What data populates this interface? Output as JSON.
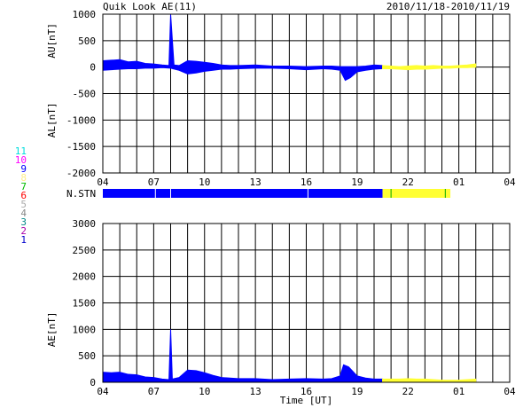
{
  "header": {
    "title": "Quik Look AE(11)",
    "date_range": "2010/11/18-2010/11/19"
  },
  "colors": {
    "grid": "#000000",
    "data_main": "#0000ff",
    "data_provisional": "#ffff33",
    "station_bar_main": "#0000ff",
    "station_bar_provisional": "#ffff33"
  },
  "station_legend": [
    {
      "num": "11",
      "color": "#00dddd"
    },
    {
      "num": "10",
      "color": "#ff00ff"
    },
    {
      "num": "9",
      "color": "#0000ff"
    },
    {
      "num": "8",
      "color": "#ffee88"
    },
    {
      "num": "7",
      "color": "#00bb00"
    },
    {
      "num": "6",
      "color": "#ff0000"
    },
    {
      "num": "5",
      "color": "#aaaaaa"
    },
    {
      "num": "4",
      "color": "#888888"
    },
    {
      "num": "3",
      "color": "#008888"
    },
    {
      "num": "2",
      "color": "#aa00aa"
    },
    {
      "num": "1",
      "color": "#0000cc"
    }
  ],
  "station_bar": {
    "label": "N.STN",
    "segments": [
      {
        "start": 4.0,
        "end": 20.5,
        "color": "#0000ff"
      },
      {
        "start": 20.5,
        "end": 24.5,
        "color": "#ffff33"
      }
    ],
    "dividers": [
      7.1,
      8.0,
      16.1,
      21.0,
      24.2
    ]
  },
  "chart_data": [
    {
      "type": "area",
      "panel": "AU/AL",
      "ylabel_top": "AU[nT]",
      "ylabel_bottom": "AL[nT]",
      "ylim": [
        -2000,
        1000
      ],
      "yticks": [
        1000,
        500,
        0,
        -500,
        -1000,
        -1500,
        -2000
      ],
      "xlim": [
        4,
        28
      ],
      "xticks": [
        "04",
        "07",
        "10",
        "13",
        "16",
        "19",
        "22",
        "01",
        "04"
      ],
      "grid": true,
      "series": [
        {
          "role": "AU",
          "x": [
            4,
            4.5,
            5,
            5.5,
            6,
            6.5,
            7,
            7.5,
            7.9,
            8,
            8.2,
            8.5,
            9,
            9.5,
            10,
            10.5,
            11,
            11.5,
            12,
            13,
            14,
            15,
            16,
            17,
            17.5,
            18,
            18.5,
            19,
            19.5,
            20,
            20.5,
            21,
            21.5,
            22,
            22.5,
            23,
            23.5,
            24,
            24.5,
            25,
            25.5,
            26
          ],
          "values": [
            120,
            130,
            140,
            100,
            110,
            70,
            60,
            40,
            30,
            1000,
            40,
            30,
            120,
            110,
            90,
            70,
            40,
            30,
            30,
            40,
            20,
            20,
            10,
            20,
            20,
            10,
            10,
            10,
            20,
            40,
            30,
            20,
            10,
            20,
            30,
            20,
            30,
            20,
            20,
            30,
            40,
            60
          ]
        },
        {
          "role": "AL",
          "x": [
            4,
            4.5,
            5,
            5.5,
            6,
            6.5,
            7,
            7.5,
            8,
            8.5,
            9,
            9.5,
            10,
            10.5,
            11,
            11.5,
            12,
            13,
            14,
            15,
            16,
            17,
            17.5,
            18,
            18.3,
            18.6,
            19,
            19.5,
            20,
            20.5,
            21,
            21.5,
            22,
            22.5,
            23,
            23.5,
            24,
            24.5,
            25,
            25.5,
            26
          ],
          "values": [
            -60,
            -50,
            -40,
            -30,
            -30,
            -20,
            -20,
            -10,
            -20,
            -60,
            -130,
            -110,
            -80,
            -60,
            -40,
            -40,
            -30,
            -20,
            -20,
            -30,
            -50,
            -30,
            -40,
            -60,
            -250,
            -200,
            -90,
            -60,
            -40,
            -30,
            -30,
            -40,
            -50,
            -40,
            -40,
            -30,
            -20,
            -20,
            -10,
            -10,
            0
          ]
        }
      ]
    },
    {
      "type": "area",
      "panel": "AE",
      "ylabel": "AE[nT]",
      "xlabel": "Time [UT]",
      "ylim": [
        0,
        3000
      ],
      "yticks": [
        3000,
        2500,
        2000,
        1500,
        1000,
        500,
        0
      ],
      "xlim": [
        4,
        28
      ],
      "xticks": [
        "04",
        "07",
        "10",
        "13",
        "16",
        "19",
        "22",
        "01",
        "04"
      ],
      "grid": true,
      "series": [
        {
          "role": "AE",
          "x": [
            4,
            4.5,
            5,
            5.5,
            6,
            6.5,
            7,
            7.5,
            7.9,
            8,
            8.1,
            8.5,
            9,
            9.5,
            10,
            10.5,
            11,
            11.5,
            12,
            13,
            14,
            15,
            16,
            17,
            17.5,
            18,
            18.2,
            18.5,
            19,
            19.5,
            20,
            20.5,
            21,
            21.5,
            22,
            22.5,
            23,
            23.5,
            24,
            24.5,
            25,
            25.5,
            26
          ],
          "values": [
            190,
            180,
            190,
            150,
            140,
            100,
            90,
            60,
            50,
            1000,
            60,
            90,
            230,
            220,
            180,
            130,
            90,
            80,
            70,
            70,
            50,
            60,
            70,
            60,
            70,
            120,
            330,
            290,
            120,
            80,
            60,
            60,
            60,
            60,
            70,
            60,
            60,
            50,
            40,
            40,
            40,
            50,
            60
          ]
        }
      ]
    }
  ]
}
